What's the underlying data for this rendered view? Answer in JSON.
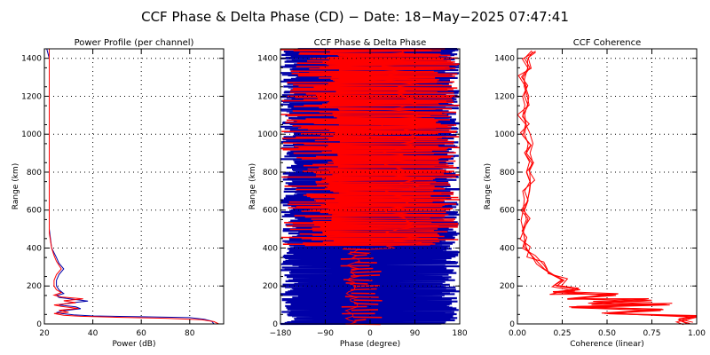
{
  "page": {
    "title": "CCF Phase & Delta Phase (CD) − Date: 18−May−2025 07:47:41"
  },
  "colors": {
    "channel_a": "#0000a8",
    "channel_b": "#ff0000",
    "axis": "#000000"
  },
  "chart_data": [
    {
      "type": "line",
      "title": "Power Profile (per channel)",
      "xlabel": "Power (dB)",
      "ylabel": "Range (km)",
      "xlim": [
        20,
        94
      ],
      "ylim": [
        0,
        1450
      ],
      "xticks": [
        20,
        40,
        60,
        80
      ],
      "yticks": [
        0,
        200,
        400,
        600,
        800,
        1000,
        1200,
        1400
      ],
      "grid": true,
      "series": [
        {
          "color": "#0000a8",
          "points": [
            [
              90,
              0
            ],
            [
              89,
              15
            ],
            [
              86,
              25
            ],
            [
              80,
              33
            ],
            [
              60,
              38
            ],
            [
              40,
              42
            ],
            [
              32,
              48
            ],
            [
              27,
              55
            ],
            [
              25,
              60
            ],
            [
              28,
              70
            ],
            [
              35,
              80
            ],
            [
              33,
              90
            ],
            [
              26,
              100
            ],
            [
              30,
              110
            ],
            [
              38,
              120
            ],
            [
              32,
              130
            ],
            [
              26,
              140
            ],
            [
              25,
              150
            ],
            [
              28,
              160
            ],
            [
              27,
              170
            ],
            [
              26,
              180
            ],
            [
              25,
              200
            ],
            [
              25,
              230
            ],
            [
              26,
              260
            ],
            [
              28,
              290
            ],
            [
              26,
              320
            ],
            [
              25,
              350
            ],
            [
              23,
              400
            ],
            [
              22,
              500
            ],
            [
              22,
              600
            ],
            [
              22,
              700
            ],
            [
              22,
              800
            ],
            [
              22,
              900
            ],
            [
              22,
              1000
            ],
            [
              22,
              1100
            ],
            [
              22,
              1200
            ],
            [
              22,
              1300
            ],
            [
              22,
              1400
            ],
            [
              21,
              1450
            ]
          ]
        },
        {
          "color": "#ff0000",
          "points": [
            [
              92,
              0
            ],
            [
              90,
              12
            ],
            [
              85,
              22
            ],
            [
              70,
              30
            ],
            [
              50,
              35
            ],
            [
              35,
              40
            ],
            [
              28,
              46
            ],
            [
              24,
              55
            ],
            [
              30,
              62
            ],
            [
              26,
              72
            ],
            [
              34,
              82
            ],
            [
              27,
              92
            ],
            [
              24,
              100
            ],
            [
              33,
              112
            ],
            [
              28,
              122
            ],
            [
              36,
              132
            ],
            [
              27,
              142
            ],
            [
              24,
              152
            ],
            [
              27,
              165
            ],
            [
              25,
              180
            ],
            [
              24,
              200
            ],
            [
              24,
              230
            ],
            [
              25,
              260
            ],
            [
              27,
              290
            ],
            [
              25,
              330
            ],
            [
              24,
              360
            ],
            [
              23,
              400
            ],
            [
              22,
              480
            ],
            [
              22,
              560
            ],
            [
              22,
              700
            ],
            [
              22,
              850
            ],
            [
              22,
              1000
            ],
            [
              22,
              1150
            ],
            [
              22,
              1300
            ],
            [
              22,
              1450
            ]
          ]
        }
      ]
    },
    {
      "type": "line",
      "title": "CCF Phase & Delta Phase",
      "xlabel": "Phase (degree)",
      "ylabel": "Range (km)",
      "xlim": [
        -180,
        180
      ],
      "ylim": [
        0,
        1450
      ],
      "xticks": [
        -180,
        -90,
        0,
        90,
        180
      ],
      "yticks": [
        0,
        200,
        400,
        600,
        800,
        1000,
        1200,
        1400
      ],
      "grid": true,
      "series": [
        {
          "color": "#0000a8",
          "values": []
        },
        {
          "color": "#ff0000",
          "values": []
        }
      ]
    },
    {
      "type": "line",
      "title": "CCF Coherence",
      "xlabel": "Coherence (linear)",
      "ylabel": "Range (km)",
      "xlim": [
        0,
        1
      ],
      "ylim": [
        0,
        1450
      ],
      "xticks": [
        0,
        0.25,
        0.5,
        0.75,
        1
      ],
      "xtick_labels": [
        "0.00",
        "0.25",
        "0.50",
        "0.75",
        "1.00"
      ],
      "yticks": [
        0,
        200,
        400,
        600,
        800,
        1000,
        1200,
        1400
      ],
      "grid": true,
      "series": [
        {
          "color": "#ff0000",
          "points": [
            [
              0.95,
              0
            ],
            [
              0.9,
              20
            ],
            [
              1.0,
              40
            ],
            [
              0.5,
              55
            ],
            [
              0.8,
              70
            ],
            [
              0.3,
              85
            ],
            [
              0.85,
              100
            ],
            [
              0.4,
              110
            ],
            [
              0.75,
              125
            ],
            [
              0.3,
              135
            ],
            [
              0.55,
              150
            ],
            [
              0.2,
              165
            ],
            [
              0.35,
              180
            ],
            [
              0.22,
              200
            ],
            [
              0.26,
              230
            ],
            [
              0.2,
              260
            ],
            [
              0.15,
              290
            ],
            [
              0.12,
              320
            ],
            [
              0.08,
              360
            ],
            [
              0.05,
              400
            ],
            [
              0.04,
              450
            ],
            [
              0.03,
              500
            ],
            [
              0.05,
              550
            ],
            [
              0.04,
              600
            ],
            [
              0.06,
              650
            ],
            [
              0.04,
              700
            ],
            [
              0.07,
              750
            ],
            [
              0.05,
              800
            ],
            [
              0.09,
              850
            ],
            [
              0.05,
              900
            ],
            [
              0.06,
              950
            ],
            [
              0.04,
              1000
            ],
            [
              0.05,
              1050
            ],
            [
              0.03,
              1100
            ],
            [
              0.06,
              1150
            ],
            [
              0.04,
              1200
            ],
            [
              0.05,
              1250
            ],
            [
              0.03,
              1300
            ],
            [
              0.07,
              1350
            ],
            [
              0.04,
              1400
            ],
            [
              0.08,
              1440
            ]
          ]
        }
      ]
    }
  ]
}
